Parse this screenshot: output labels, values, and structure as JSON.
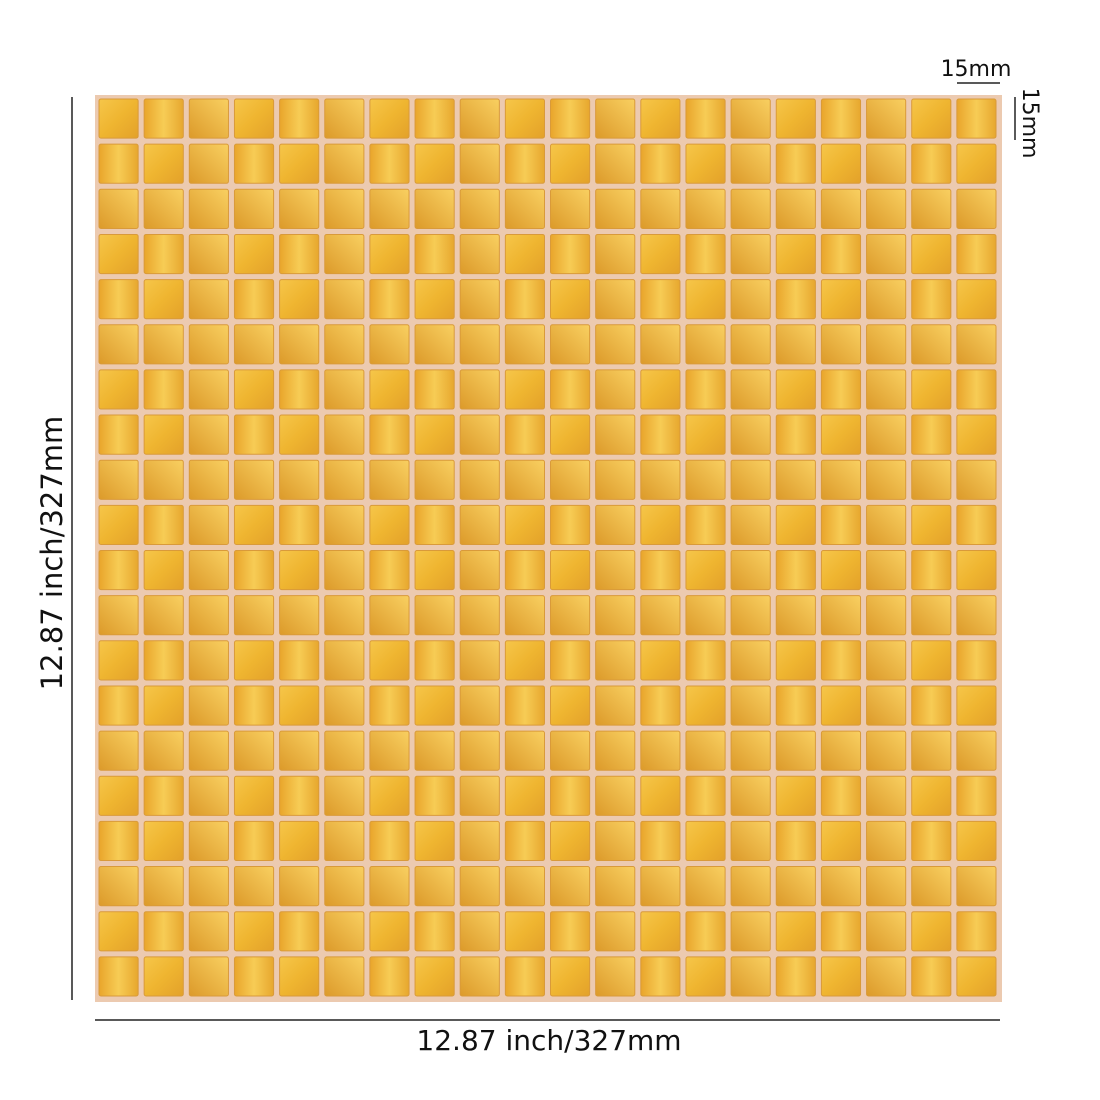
{
  "labels": {
    "tile_width": "15mm",
    "tile_height": "15mm",
    "sheet_height": "12.87 inch/327mm",
    "sheet_width": "12.87 inch/327mm"
  }
}
